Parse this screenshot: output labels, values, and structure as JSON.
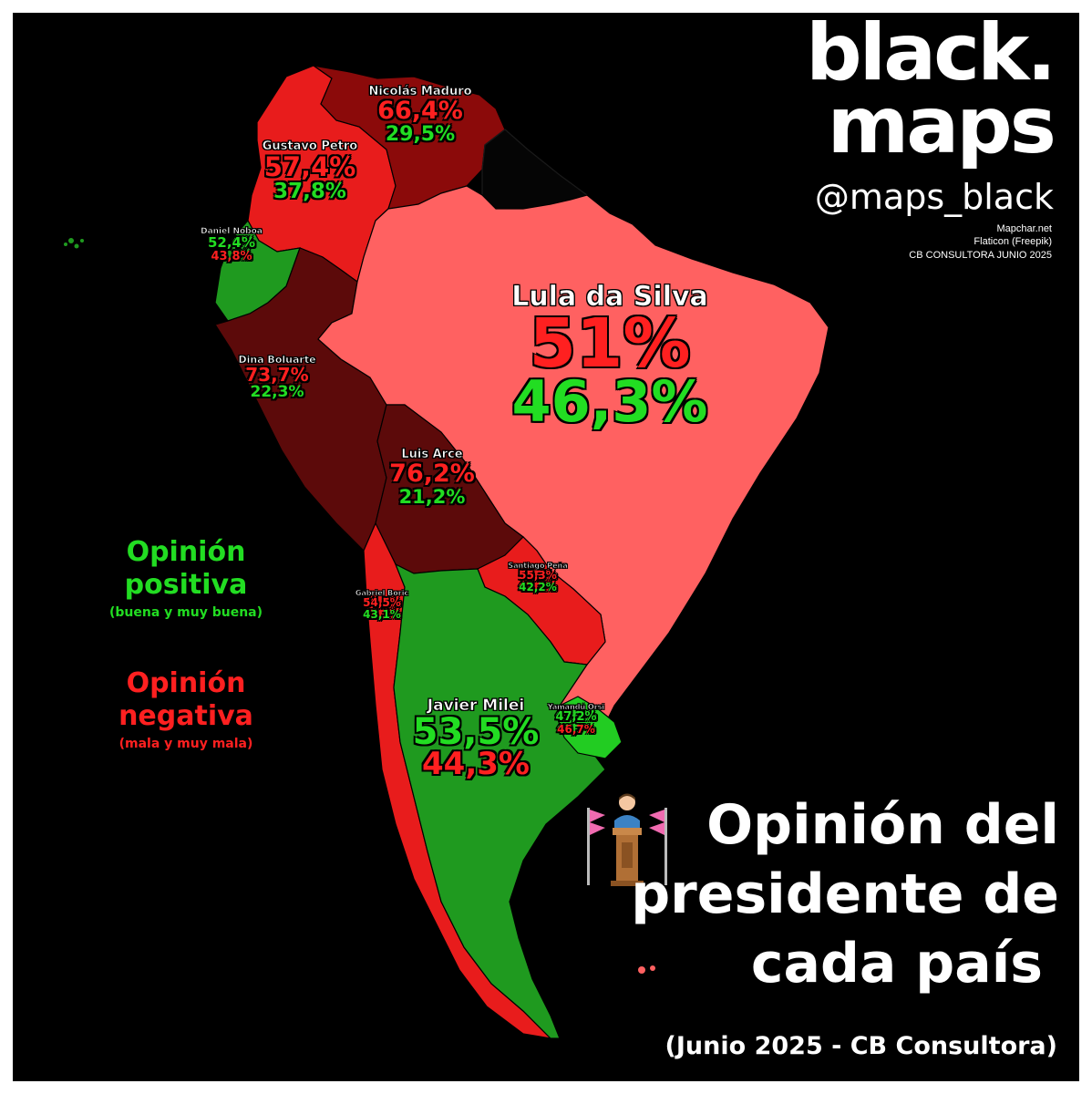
{
  "brand": {
    "line1": "black.",
    "line2": "maps",
    "handle": "@maps_black",
    "credits": [
      "Mapchar.net",
      "Flaticon (Freepik)",
      "CB CONSULTORA JUNIO 2025"
    ]
  },
  "legend": {
    "positive_title_1": "Opinión",
    "positive_title_2": "positiva",
    "positive_sub": "(buena y muy buena)",
    "negative_title_1": "Opinión",
    "negative_title_2": "negativa",
    "negative_sub": "(mala y muy mala)"
  },
  "title": {
    "line1": "Opinión del",
    "line2": "presidente de",
    "line3": "cada país",
    "subtitle": "(Junio 2025 - CB Consultora)"
  },
  "colors": {
    "positive": "#22dd22",
    "negative": "#ff2020",
    "brazil": "#ff6161",
    "dark_red": "#8b0a0a",
    "very_dark_red": "#5c0a0a",
    "red": "#e81c1c",
    "green": "#1f9a1f",
    "background": "#000000"
  },
  "countries": [
    {
      "country": "Venezuela",
      "president": "Nicolás Maduro",
      "negative": "66,4%",
      "positive": "29,5%"
    },
    {
      "country": "Colombia",
      "president": "Gustavo Petro",
      "negative": "57,4%",
      "positive": "37,8%"
    },
    {
      "country": "Ecuador",
      "president": "Daniel Noboa",
      "positive": "52,4%",
      "negative": "43,8%"
    },
    {
      "country": "Perú",
      "president": "Dina Boluarte",
      "negative": "73,7%",
      "positive": "22,3%"
    },
    {
      "country": "Brasil",
      "president": "Lula da Silva",
      "negative": "51%",
      "positive": "46,3%"
    },
    {
      "country": "Bolivia",
      "president": "Luis Arce",
      "negative": "76,2%",
      "positive": "21,2%"
    },
    {
      "country": "Paraguay",
      "president": "Santiago Peña",
      "negative": "55,3%",
      "positive": "42,2%"
    },
    {
      "country": "Chile",
      "president": "Gabriel Boric",
      "negative": "54,5%",
      "positive": "43,1%"
    },
    {
      "country": "Argentina",
      "president": "Javier Milei",
      "positive": "53,5%",
      "negative": "44,3%"
    },
    {
      "country": "Uruguay",
      "president": "Yamandú Orsi",
      "positive": "47,2%",
      "negative": "46,7%"
    }
  ]
}
